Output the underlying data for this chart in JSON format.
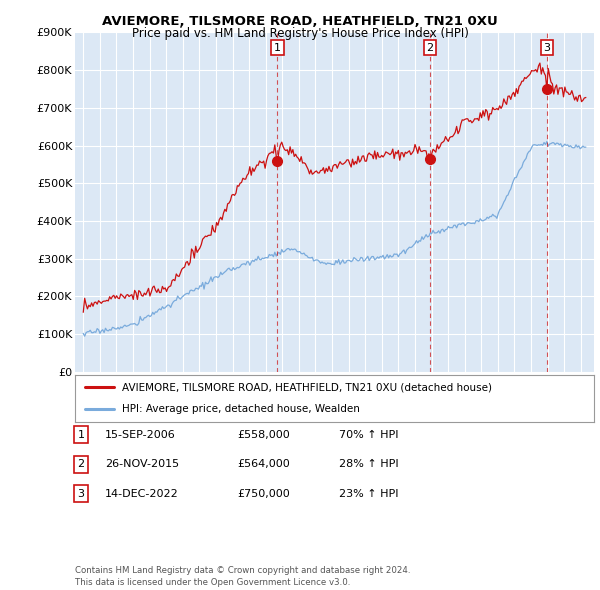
{
  "title": "AVIEMORE, TILSMORE ROAD, HEATHFIELD, TN21 0XU",
  "subtitle": "Price paid vs. HM Land Registry's House Price Index (HPI)",
  "bg_color": "#dce8f5",
  "outer_bg": "#ffffff",
  "red_line_color": "#cc1111",
  "blue_line_color": "#7aabdc",
  "grid_color": "#ffffff",
  "ylim": [
    0,
    900000
  ],
  "yticks": [
    0,
    100000,
    200000,
    300000,
    400000,
    500000,
    600000,
    700000,
    800000,
    900000
  ],
  "ytick_labels": [
    "£0",
    "£100K",
    "£200K",
    "£300K",
    "£400K",
    "£500K",
    "£600K",
    "£700K",
    "£800K",
    "£900K"
  ],
  "sale_years": [
    2006.71,
    2015.9,
    2022.96
  ],
  "sale_prices": [
    558000,
    564000,
    750000
  ],
  "sale_labels": [
    "1",
    "2",
    "3"
  ],
  "legend_line1": "AVIEMORE, TILSMORE ROAD, HEATHFIELD, TN21 0XU (detached house)",
  "legend_line2": "HPI: Average price, detached house, Wealden",
  "table_rows": [
    {
      "num": "1",
      "date": "15-SEP-2006",
      "price": "£558,000",
      "change": "70% ↑ HPI"
    },
    {
      "num": "2",
      "date": "26-NOV-2015",
      "price": "£564,000",
      "change": "28% ↑ HPI"
    },
    {
      "num": "3",
      "date": "14-DEC-2022",
      "price": "£750,000",
      "change": "23% ↑ HPI"
    }
  ],
  "footer": "Contains HM Land Registry data © Crown copyright and database right 2024.\nThis data is licensed under the Open Government Licence v3.0."
}
